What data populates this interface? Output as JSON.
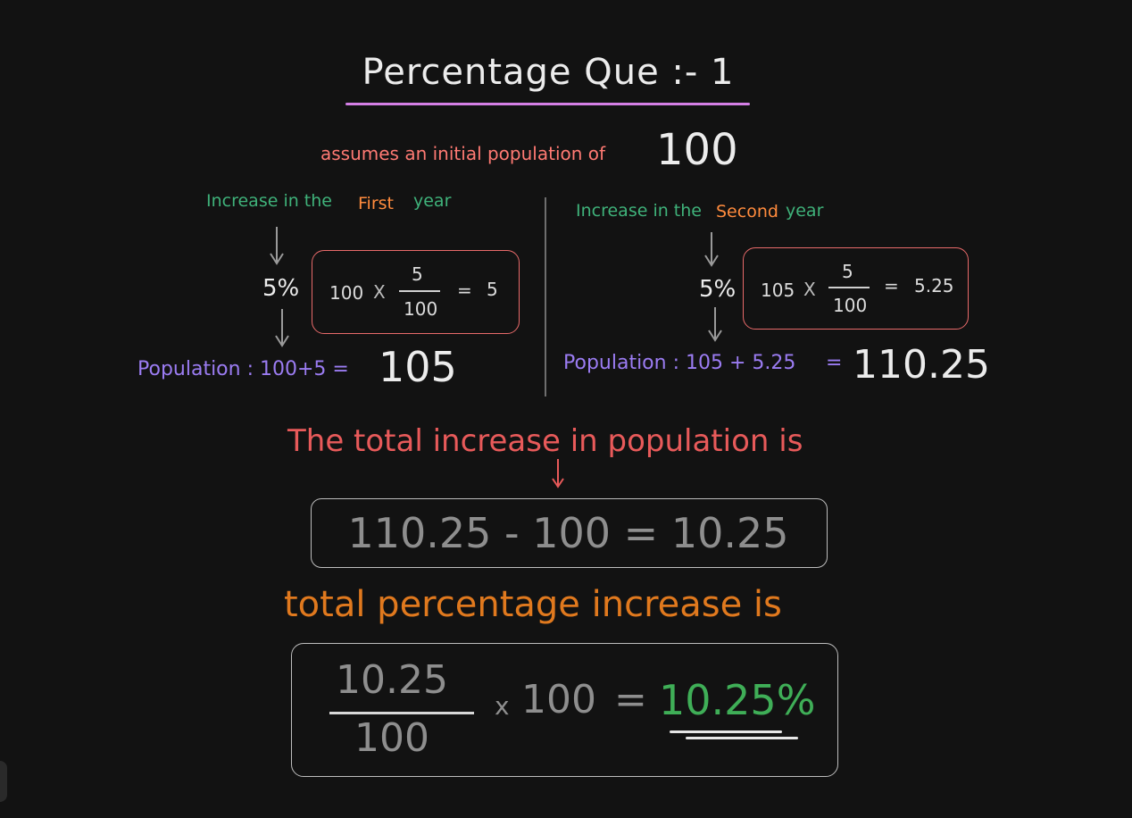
{
  "title": "Percentage Que :- 1",
  "intro": {
    "text": "assumes an initial population of",
    "value": "100"
  },
  "first_year": {
    "label_prefix": "Increase in the",
    "label_highlight": "First",
    "label_suffix": "year",
    "rate": "5%",
    "calc": {
      "base": "100",
      "times": "X",
      "numerator": "5",
      "denominator": "100",
      "equals": "=",
      "result": "5"
    },
    "population_label": "Population : 100+5 =",
    "population_result": "105"
  },
  "second_year": {
    "label_prefix": "Increase in the",
    "label_highlight": "Second",
    "label_suffix": "year",
    "rate": "5%",
    "calc": {
      "base": "105",
      "times": "X",
      "numerator": "5",
      "denominator": "100",
      "equals": "=",
      "result": "5.25"
    },
    "population_label": "Population : 105 + 5.25",
    "population_equals": "=",
    "population_result": "110.25"
  },
  "total_increase": {
    "heading": "The total increase in population is",
    "equation": "110.25 - 100 = 10.25"
  },
  "total_percentage": {
    "heading": "total percentage increase is",
    "numerator": "10.25",
    "denominator": "100",
    "times": "x",
    "multiplier": "100",
    "equals": "=",
    "result": "10.25%"
  },
  "colors": {
    "title_underline": "#d47fe6",
    "intro": "#ff7a73",
    "green": "#3fb27a",
    "orange": "#ff8b3d",
    "purple": "#9b7cf2",
    "total_heading": "#e85a5a",
    "pct_heading": "#e0791e",
    "answer": "#3fae57",
    "box_border": "#e86a6a"
  }
}
